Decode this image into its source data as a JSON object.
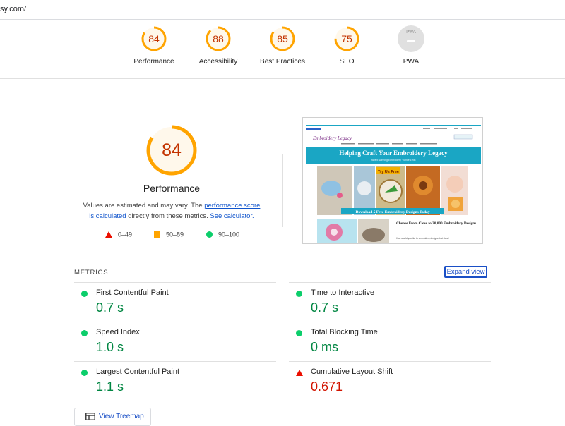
{
  "address_bar": {
    "url": "sy.com/"
  },
  "categories": [
    {
      "label": "Performance",
      "score": "84",
      "level": 0.84
    },
    {
      "label": "Accessibility",
      "score": "88",
      "level": 0.88
    },
    {
      "label": "Best Practices",
      "score": "85",
      "level": 0.85
    },
    {
      "label": "SEO",
      "score": "75",
      "level": 0.75
    },
    {
      "label": "PWA",
      "badge": "PWA"
    }
  ],
  "performance": {
    "score": "84",
    "level": 0.84,
    "title": "Performance",
    "desc_prefix": "Values are estimated and may vary. The ",
    "desc_link1": "performance score is calculated",
    "desc_middle": " directly from these metrics. ",
    "desc_link2": "See calculator."
  },
  "legend": {
    "fail": "0–49",
    "average": "50–89",
    "pass": "90–100"
  },
  "metrics_section": {
    "title": "METRICS",
    "expand_label": "Expand view"
  },
  "metrics": [
    {
      "label": "First Contentful Paint",
      "value": "0.7 s",
      "status": "pass"
    },
    {
      "label": "Time to Interactive",
      "value": "0.7 s",
      "status": "pass"
    },
    {
      "label": "Speed Index",
      "value": "1.0 s",
      "status": "pass"
    },
    {
      "label": "Total Blocking Time",
      "value": "0 ms",
      "status": "pass"
    },
    {
      "label": "Largest Contentful Paint",
      "value": "1.1 s",
      "status": "pass"
    },
    {
      "label": "Cumulative Layout Shift",
      "value": "0.671",
      "status": "fail"
    }
  ],
  "treemap": {
    "label": "View Treemap"
  },
  "screenshot": {
    "logo_script": "Embroidery Legacy",
    "banner": "Helping Craft Your Embroidery Legacy",
    "banner_sub": "Award Winning Embroidery · Since 1998",
    "try_free": "Try Us Free",
    "download": "Download 5 Free Embroidery Designs Today",
    "choose": "Choose From Close to 30,000 Embroidery Designs",
    "tagline": "How would you like to embroidery designs that stand"
  },
  "colors": {
    "average": "#ffa400",
    "average_text": "#c33300",
    "pass": "#0cce6b",
    "pass_text": "#018642",
    "fail": "#eb0f00",
    "fail_text": "#d21400",
    "link": "#1155cc",
    "banner": "#1aa6c4"
  }
}
